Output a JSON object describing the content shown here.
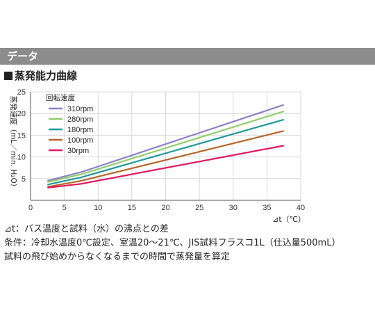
{
  "header": {
    "title": "データ"
  },
  "section": {
    "title": "蒸発能力曲線"
  },
  "chart_data": {
    "type": "line",
    "ylabel": "蒸発速度（mL／min. H₂O）",
    "xlabel": "⊿t（℃）",
    "xlim": [
      0,
      40
    ],
    "ylim": [
      0,
      25
    ],
    "x_ticks": [
      0,
      5,
      10,
      15,
      20,
      25,
      30,
      35,
      40
    ],
    "y_ticks": [
      5,
      10,
      15,
      20,
      25
    ],
    "grid": true,
    "legend_title": "回転速度",
    "legend_position": "top-left",
    "series": [
      {
        "name": "310rpm",
        "color": "#8c80c8",
        "x": [
          2.5,
          7.5,
          37.5
        ],
        "y": [
          4.5,
          6.5,
          22.0
        ]
      },
      {
        "name": "280rpm",
        "color": "#8fcf6a",
        "x": [
          2.5,
          7.5,
          37.5
        ],
        "y": [
          4.2,
          6.0,
          20.5
        ]
      },
      {
        "name": "180rpm",
        "color": "#1f9a9a",
        "x": [
          2.5,
          7.5,
          37.5
        ],
        "y": [
          3.6,
          5.3,
          18.6
        ]
      },
      {
        "name": "100rpm",
        "color": "#b5652a",
        "x": [
          2.5,
          7.5,
          37.5
        ],
        "y": [
          3.1,
          4.5,
          16.0
        ]
      },
      {
        "name": "30rpm",
        "color": "#e0185e",
        "x": [
          2.5,
          7.5,
          37.5
        ],
        "y": [
          2.9,
          3.8,
          12.6
        ]
      }
    ]
  },
  "notes": {
    "line1": "⊿t：バス温度と試料（水）の沸点との差",
    "line2": "条件：冷却水温度0℃設定、室温20～21℃、JIS試料フラスコ1L（仕込量500mL）",
    "line3": "試料の飛び始めからなくなるまでの時間で蒸発量を算定"
  }
}
